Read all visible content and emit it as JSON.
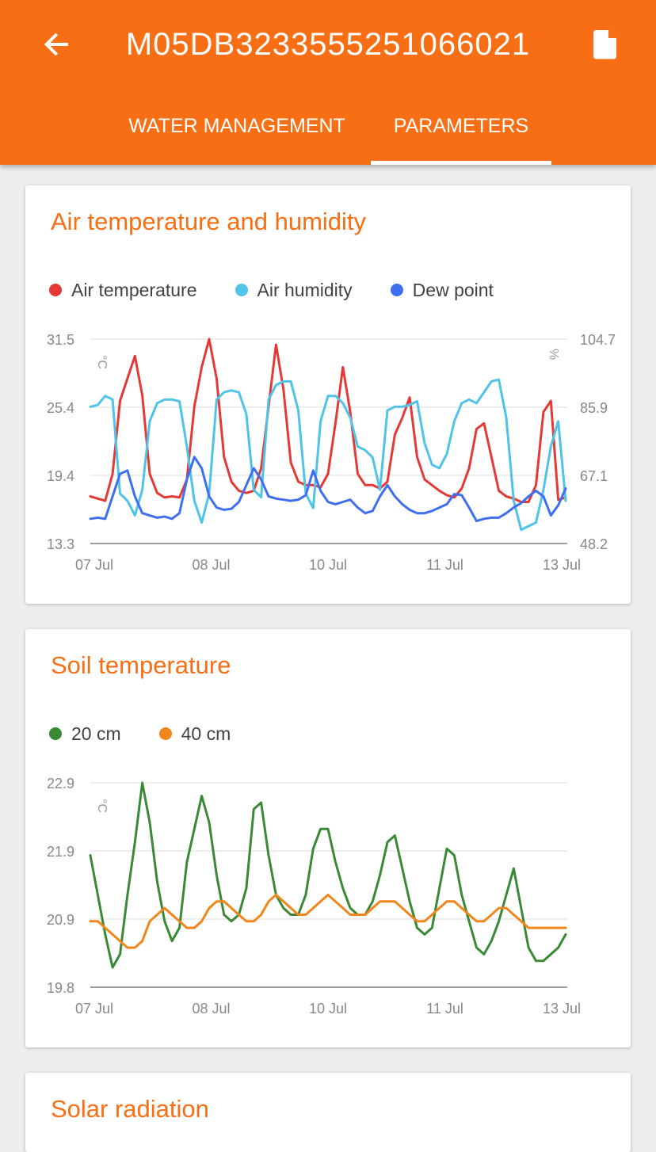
{
  "header": {
    "title": "M05DB3233555251066021",
    "back_icon": "arrow-back-icon",
    "doc_icon": "document-icon",
    "tabs": [
      {
        "label": "WATER MANAGEMENT",
        "active": false
      },
      {
        "label": "PARAMETERS",
        "active": true
      }
    ],
    "colors": {
      "primary": "#f86e14",
      "on_primary": "#ffffff"
    }
  },
  "cards": {
    "air": {
      "title": "Air temperature and humidity"
    },
    "soil": {
      "title": "Soil temperature"
    },
    "solar": {
      "title": "Solar radiation"
    }
  },
  "chart_data": [
    {
      "type": "line",
      "title": "Air temperature and humidity",
      "legend_position": "top-left",
      "grid": true,
      "x_ticks": [
        "07 Jul",
        "08 Jul",
        "10 Jul",
        "11 Jul",
        "13 Jul"
      ],
      "ylabel": "°C",
      "ylim": [
        13.3,
        31.5
      ],
      "y_ticks": [
        "31.5",
        "25.4",
        "19.4",
        "13.3"
      ],
      "y2label": "%",
      "y2lim": [
        48.2,
        104.7
      ],
      "y2_ticks": [
        "104.7",
        "85.9",
        "67.1",
        "48.2"
      ],
      "x": [
        0,
        0.25,
        0.5,
        0.75,
        1,
        1.25,
        1.5,
        1.75,
        2,
        2.25,
        2.5,
        2.75,
        3,
        3.25,
        3.5,
        3.75,
        4,
        4.25,
        4.5,
        4.75,
        5,
        5.25,
        5.5,
        5.75,
        6,
        6.25,
        6.5,
        6.75,
        7,
        7.25,
        7.5,
        7.75,
        8,
        8.25,
        8.5,
        8.75,
        9,
        9.25,
        9.5,
        9.75,
        10,
        10.25,
        10.5,
        10.75,
        11,
        11.25,
        11.5,
        11.75,
        12,
        12.25,
        12.5,
        12.75,
        13,
        13.25,
        13.5,
        13.75,
        14,
        14.25,
        14.5,
        14.75,
        15,
        15.25,
        15.5,
        15.75,
        16
      ],
      "series": [
        {
          "name": "Air temperature",
          "color": "#e53935",
          "axis": "left",
          "values": [
            17.5,
            17.3,
            17.1,
            19.5,
            26.0,
            28.0,
            30.0,
            26.5,
            19.5,
            17.8,
            17.4,
            17.5,
            17.4,
            19.0,
            25.5,
            29.0,
            31.5,
            28.0,
            21.0,
            18.8,
            18.0,
            17.8,
            18.0,
            20.0,
            25.5,
            31.0,
            27.0,
            20.5,
            18.8,
            18.5,
            18.5,
            18.3,
            19.5,
            24.0,
            29.0,
            25.0,
            19.5,
            18.5,
            18.5,
            18.2,
            18.8,
            23.0,
            24.5,
            26.3,
            21.0,
            19.0,
            18.5,
            18.0,
            17.6,
            17.4,
            18.2,
            20.0,
            23.5,
            24.0,
            21.0,
            18.0,
            17.5,
            17.3,
            17.0,
            17.0,
            18.5,
            25.0,
            26.0,
            17.2,
            17.4
          ]
        },
        {
          "name": "Air humidity",
          "color": "#4fc3e8",
          "axis": "right",
          "values": [
            86.0,
            86.5,
            89.0,
            88.0,
            62.0,
            60.0,
            56.0,
            63.0,
            82.0,
            87.0,
            88.0,
            88.0,
            87.5,
            75.0,
            60.0,
            54.0,
            62.0,
            88.0,
            90.0,
            90.5,
            90.0,
            84.0,
            63.0,
            61.0,
            88.0,
            92.0,
            93.0,
            93.0,
            85.0,
            62.0,
            58.0,
            82.0,
            89.0,
            89.0,
            87.0,
            83.0,
            75.0,
            74.0,
            72.0,
            63.0,
            85.0,
            86.0,
            86.0,
            86.5,
            87.5,
            76.0,
            70.0,
            69.0,
            73.0,
            82.0,
            87.0,
            88.0,
            87.0,
            90.0,
            93.0,
            93.5,
            83.0,
            60.0,
            52.0,
            53.0,
            54.0,
            63.0,
            75.0,
            82.0,
            60.0
          ]
        },
        {
          "name": "Dew point",
          "color": "#3f6ff0",
          "axis": "left",
          "values": [
            15.5,
            15.6,
            15.5,
            17.5,
            19.5,
            19.8,
            17.5,
            16.0,
            15.8,
            15.6,
            15.7,
            15.5,
            16.0,
            19.0,
            21.0,
            20.0,
            17.5,
            16.5,
            16.3,
            16.4,
            17.0,
            18.5,
            20.0,
            19.0,
            17.5,
            17.3,
            17.2,
            17.1,
            17.2,
            17.6,
            19.8,
            18.0,
            17.0,
            16.8,
            17.0,
            17.2,
            16.5,
            16.0,
            16.2,
            17.5,
            18.5,
            17.5,
            16.8,
            16.3,
            16.0,
            16.0,
            16.2,
            16.5,
            16.8,
            17.7,
            17.6,
            16.5,
            15.3,
            15.5,
            15.6,
            15.6,
            16.0,
            16.5,
            16.9,
            17.5,
            18.0,
            17.5,
            15.8,
            16.7,
            18.2
          ]
        }
      ]
    },
    {
      "type": "line",
      "title": "Soil temperature",
      "legend_position": "top-left",
      "grid": true,
      "x_ticks": [
        "07 Jul",
        "08 Jul",
        "10 Jul",
        "11 Jul",
        "13 Jul"
      ],
      "ylabel": "°C",
      "ylim": [
        19.8,
        22.9
      ],
      "y_ticks": [
        "22.9",
        "21.9",
        "20.9",
        "19.8"
      ],
      "x": [
        0,
        0.25,
        0.5,
        0.75,
        1,
        1.25,
        1.5,
        1.75,
        2,
        2.25,
        2.5,
        2.75,
        3,
        3.25,
        3.5,
        3.75,
        4,
        4.25,
        4.5,
        4.75,
        5,
        5.25,
        5.5,
        5.75,
        6,
        6.25,
        6.5,
        6.75,
        7,
        7.25,
        7.5,
        7.75,
        8,
        8.25,
        8.5,
        8.75,
        9,
        9.25,
        9.5,
        9.75,
        10,
        10.25,
        10.5,
        10.75,
        11,
        11.25,
        11.5,
        11.75,
        12,
        12.25,
        12.5,
        12.75,
        13,
        13.25,
        13.5,
        13.75,
        14,
        14.25,
        14.5,
        14.75,
        15,
        15.25,
        15.5,
        15.75,
        16
      ],
      "series": [
        {
          "name": "20 cm",
          "color": "#3a8a35",
          "values": [
            21.8,
            21.2,
            20.6,
            20.1,
            20.3,
            21.2,
            22.0,
            22.9,
            22.3,
            21.4,
            20.8,
            20.5,
            20.7,
            21.7,
            22.2,
            22.7,
            22.3,
            21.5,
            20.9,
            20.8,
            20.9,
            21.3,
            22.5,
            22.6,
            21.8,
            21.2,
            21.0,
            20.9,
            20.9,
            21.2,
            21.9,
            22.2,
            22.2,
            21.7,
            21.3,
            21.0,
            20.9,
            20.9,
            21.1,
            21.5,
            22.0,
            22.1,
            21.6,
            21.1,
            20.7,
            20.6,
            20.7,
            21.3,
            21.9,
            21.8,
            21.2,
            20.8,
            20.4,
            20.3,
            20.5,
            20.8,
            21.2,
            21.6,
            21.0,
            20.4,
            20.2,
            20.2,
            20.3,
            20.4,
            20.6
          ]
        },
        {
          "name": "40 cm",
          "color": "#f0861c",
          "values": [
            20.8,
            20.8,
            20.7,
            20.6,
            20.5,
            20.4,
            20.4,
            20.5,
            20.8,
            20.9,
            21.0,
            20.9,
            20.8,
            20.7,
            20.7,
            20.8,
            21.0,
            21.1,
            21.1,
            21.0,
            20.9,
            20.8,
            20.8,
            20.9,
            21.1,
            21.2,
            21.1,
            21.0,
            20.9,
            20.9,
            21.0,
            21.1,
            21.2,
            21.1,
            21.0,
            20.9,
            20.9,
            20.9,
            21.0,
            21.1,
            21.1,
            21.1,
            21.0,
            20.9,
            20.8,
            20.8,
            20.9,
            21.0,
            21.1,
            21.1,
            21.0,
            20.9,
            20.8,
            20.8,
            20.9,
            21.0,
            21.0,
            20.9,
            20.8,
            20.7,
            20.7,
            20.7,
            20.7,
            20.7,
            20.7
          ]
        }
      ]
    }
  ]
}
